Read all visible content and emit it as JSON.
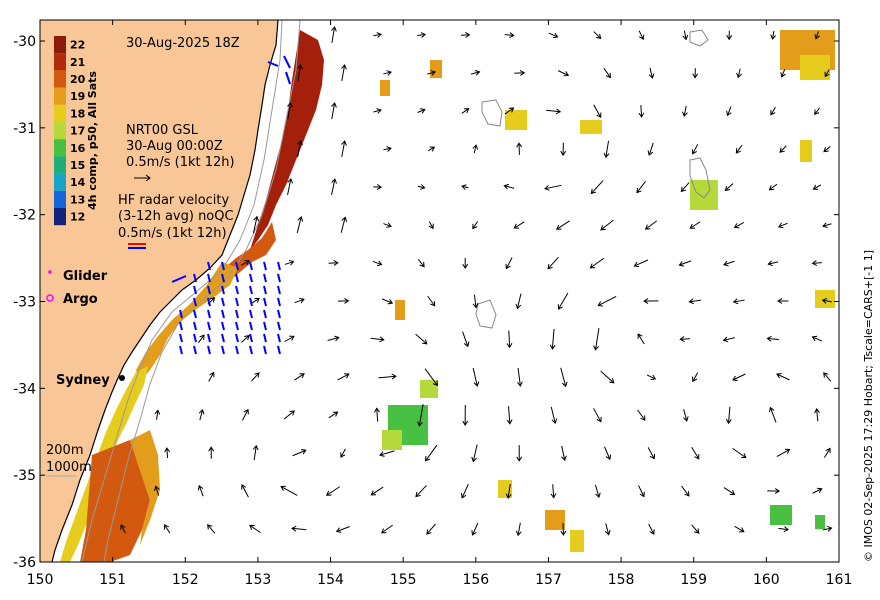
{
  "title": "30-Aug-2025 18Z",
  "colorbar": {
    "label": "4h comp, p50, All Sats",
    "ticks": [
      "22",
      "21",
      "20",
      "19",
      "18",
      "17",
      "16",
      "15",
      "14",
      "13",
      "12"
    ],
    "colors": [
      "#8b1a0a",
      "#b32a0c",
      "#d2590f",
      "#e39d1a",
      "#e6cc1d",
      "#b5d93a",
      "#48c041",
      "#1fae7a",
      "#1aa3c9",
      "#1466d8",
      "#12237a"
    ]
  },
  "legend": {
    "nrt_line1": "NRT00 GSL",
    "nrt_line2": "30-Aug 00:00Z",
    "nrt_line3": "0.5m/s (1kt 12h)",
    "hf_line1": "HF radar velocity",
    "hf_line2": "(3-12h avg) noQC",
    "hf_line3": "0.5m/s (1kt 12h)",
    "glider": "Glider",
    "argo": "Argo",
    "sydney": "Sydney",
    "depth1": "200m",
    "depth2": "1000m"
  },
  "axes": {
    "x_ticks": [
      "150",
      "151",
      "152",
      "153",
      "154",
      "155",
      "156",
      "157",
      "158",
      "159",
      "160",
      "161"
    ],
    "y_ticks": [
      "-30",
      "-31",
      "-32",
      "-33",
      "-34",
      "-35",
      "-36"
    ]
  },
  "credit": "© IMOS 02-Sep-2025 17:29 Hobart; Tscale=CARS+[-1 1]",
  "colors": {
    "land": "#f9c797",
    "arrow": "#000000",
    "hf_arrow": "#0000ff",
    "glider": "#ff00ff",
    "argo": "#ff00ff"
  }
}
